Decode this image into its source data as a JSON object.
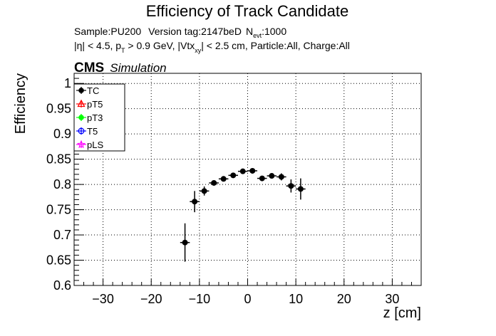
{
  "chart_data": {
    "type": "scatter",
    "title": "Efficiency of Track Candidate",
    "info_line1": {
      "sample": "Sample:PU200",
      "version": "Version tag:2147beD",
      "nevt_main": "N",
      "nevt_sub": "evt",
      "nevt_value": ":1000"
    },
    "info_line2": {
      "part1": "|η| < 4.5, p",
      "sub1": "T",
      "part2": " > 0.9 GeV, |Vtx",
      "sub2": "xy",
      "part3": "| < 2.5 cm, Particle:All, Charge:All"
    },
    "cms_label": "CMS",
    "simulation_label": "Simulation",
    "xlabel": "z [cm]",
    "ylabel": "Efficiency",
    "xlim": [
      -36,
      36
    ],
    "ylim": [
      0.6,
      1.02
    ],
    "x_ticks": [
      -30,
      -20,
      -10,
      0,
      10,
      20,
      30
    ],
    "y_ticks": [
      0.6,
      0.65,
      0.7,
      0.75,
      0.8,
      0.85,
      0.9,
      0.95,
      1
    ],
    "y_tick_labels": [
      "0.6",
      "0.65",
      "0.7",
      "0.75",
      "0.8",
      "0.85",
      "0.9",
      "0.95",
      "1"
    ],
    "grid": true,
    "legend_position": "top-left",
    "legend": [
      {
        "name": "TC",
        "color": "#000000",
        "marker": "filled-circle"
      },
      {
        "name": "pT5",
        "color": "#ff0000",
        "marker": "triangle"
      },
      {
        "name": "pT3",
        "color": "#00ff00",
        "marker": "filled-circle"
      },
      {
        "name": "T5",
        "color": "#0000ff",
        "marker": "open-circle"
      },
      {
        "name": "pLS",
        "color": "#ff00ff",
        "marker": "star"
      }
    ],
    "series": [
      {
        "name": "TC",
        "color": "#000000",
        "x": [
          -13,
          -11,
          -9,
          -7,
          -5,
          -3,
          -1,
          1,
          3,
          5,
          7,
          9,
          11
        ],
        "y": [
          0.685,
          0.766,
          0.787,
          0.803,
          0.811,
          0.818,
          0.826,
          0.827,
          0.812,
          0.817,
          0.815,
          0.797,
          0.791
        ],
        "y_err": [
          0.038,
          0.021,
          0.009,
          0.005,
          0.004,
          0.004,
          0.004,
          0.004,
          0.004,
          0.005,
          0.007,
          0.013,
          0.021
        ],
        "x_err": [
          1,
          1,
          1,
          1,
          1,
          1,
          1,
          1,
          1,
          1,
          1,
          1,
          1
        ]
      }
    ]
  }
}
